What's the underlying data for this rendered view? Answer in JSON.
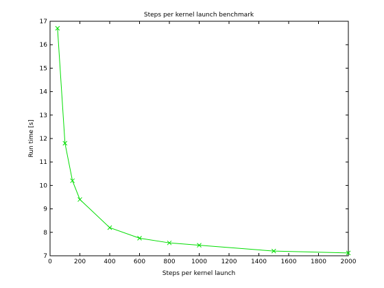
{
  "chart_data": {
    "type": "line",
    "title": "Steps per kernel launch benchmark",
    "xlabel": "Steps per kernel launch",
    "ylabel": "Run time [s]",
    "xlim": [
      0,
      2000
    ],
    "ylim": [
      7,
      17
    ],
    "xticks": [
      0,
      200,
      400,
      600,
      800,
      1000,
      1200,
      1400,
      1600,
      1800,
      2000
    ],
    "yticks": [
      7,
      8,
      9,
      10,
      11,
      12,
      13,
      14,
      15,
      16,
      17
    ],
    "grid": false,
    "legend": "none",
    "series": [
      {
        "color": "#00dd00",
        "marker": "x",
        "x": [
          50,
          100,
          150,
          200,
          400,
          600,
          800,
          1000,
          1500,
          2000
        ],
        "y": [
          16.7,
          11.8,
          10.2,
          9.4,
          8.2,
          7.75,
          7.55,
          7.45,
          7.2,
          7.12
        ]
      }
    ]
  }
}
